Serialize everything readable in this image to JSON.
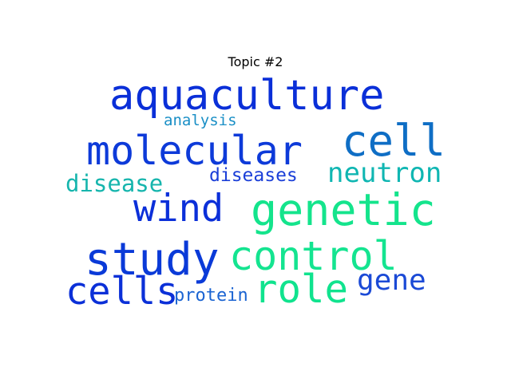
{
  "title": "Topic #2",
  "words": [
    {
      "text": "aquaculture",
      "color": "#0a2fd8"
    },
    {
      "text": "analysis",
      "color": "#1a8fc6"
    },
    {
      "text": "cell",
      "color": "#0f6ec5"
    },
    {
      "text": "molecular",
      "color": "#0d3ad9"
    },
    {
      "text": "neutron",
      "color": "#0fb6b2"
    },
    {
      "text": "disease",
      "color": "#16b5ad"
    },
    {
      "text": "diseases",
      "color": "#1b3fd8"
    },
    {
      "text": "wind",
      "color": "#0b2fd9"
    },
    {
      "text": "genetic",
      "color": "#14e48c"
    },
    {
      "text": "study",
      "color": "#0a3ad8"
    },
    {
      "text": "control",
      "color": "#14e490"
    },
    {
      "text": "gene",
      "color": "#1b4ad6"
    },
    {
      "text": "cells",
      "color": "#0b30d8"
    },
    {
      "text": "role",
      "color": "#10e38e"
    },
    {
      "text": "protein",
      "color": "#1b64d2"
    }
  ]
}
